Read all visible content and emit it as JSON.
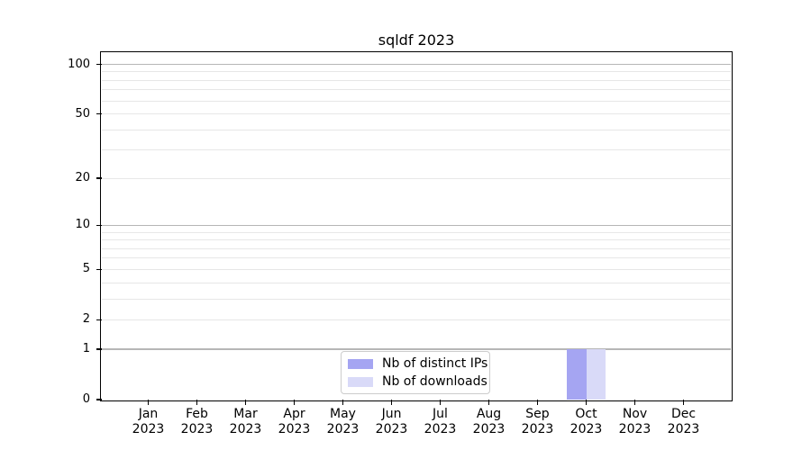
{
  "chart_data": {
    "type": "bar",
    "title": "sqldf 2023",
    "x_categories": [
      "Jan",
      "Feb",
      "Mar",
      "Apr",
      "May",
      "Jun",
      "Jul",
      "Aug",
      "Sep",
      "Oct",
      "Nov",
      "Dec"
    ],
    "x_year_label": "2023",
    "series": [
      {
        "name": "Nb of distinct IPs",
        "color": "#a5a5f2",
        "values": [
          0,
          0,
          0,
          0,
          0,
          0,
          0,
          0,
          0,
          1,
          0,
          0
        ]
      },
      {
        "name": "Nb of downloads",
        "color": "#d9daf8",
        "values": [
          0,
          0,
          0,
          0,
          0,
          0,
          0,
          0,
          0,
          1,
          0,
          0
        ]
      }
    ],
    "y_axis": {
      "scale": "log1p",
      "lim": [
        0,
        100
      ],
      "tick_values": [
        0,
        1,
        2,
        5,
        10,
        20,
        50,
        100
      ],
      "tick_labels": [
        "0",
        "1",
        "2",
        "5",
        "10",
        "20",
        "50",
        "100"
      ],
      "major_gridlines": [
        1,
        10,
        100
      ],
      "minor_gridlines": [
        2,
        3,
        4,
        5,
        6,
        7,
        8,
        9,
        20,
        30,
        40,
        50,
        60,
        70,
        80,
        90
      ]
    },
    "legend": {
      "entries": [
        "Nb of distinct IPs",
        "Nb of downloads"
      ],
      "position": "lower center"
    },
    "grid": true,
    "colors": {
      "major_grid": "#b6b6b6",
      "minor_grid": "#e7e7e7",
      "spine": "#000000",
      "text": "#000000",
      "background": "#ffffff",
      "legend_border": "#cccccc"
    }
  }
}
